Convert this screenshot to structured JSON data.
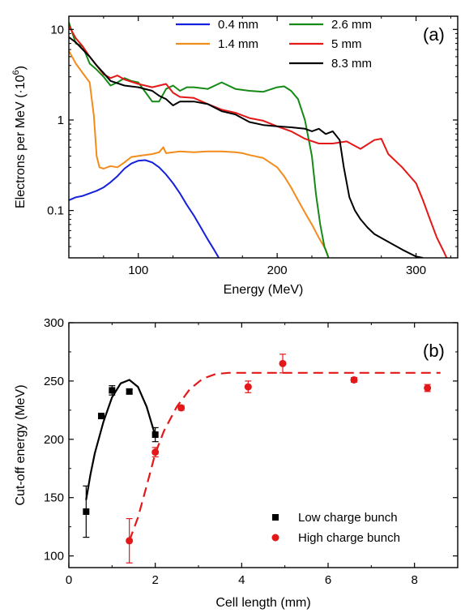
{
  "chart_data": [
    {
      "panel": "(a)",
      "type": "line",
      "xlabel": "Energy (MeV)",
      "ylabel": "Electrons per MeV (·10⁶)",
      "ylabel_main": "Electrons per MeV (",
      "ylabel_sup_base": "·10",
      "ylabel_sup_exp": "6",
      "ylabel_close": ")",
      "xlim": [
        50,
        330
      ],
      "ylim": [
        0.03,
        14
      ],
      "yscale": "log",
      "xticks": [
        100,
        200,
        300
      ],
      "yticks": [
        {
          "value": 0.1,
          "label": "0.1"
        },
        {
          "value": 1,
          "label": "1"
        },
        {
          "value": 10,
          "label": "10"
        }
      ],
      "grid": false,
      "legend_position": "top",
      "series": [
        {
          "name": "0.4 mm",
          "color": "#1520dd",
          "x": [
            50,
            55,
            60,
            65,
            70,
            75,
            80,
            85,
            90,
            95,
            100,
            105,
            110,
            115,
            120,
            125,
            130,
            135,
            140,
            145,
            150,
            155,
            158
          ],
          "y": [
            0.13,
            0.14,
            0.145,
            0.155,
            0.165,
            0.18,
            0.205,
            0.24,
            0.29,
            0.33,
            0.355,
            0.36,
            0.34,
            0.3,
            0.25,
            0.2,
            0.155,
            0.115,
            0.088,
            0.065,
            0.048,
            0.036,
            0.03
          ]
        },
        {
          "name": "1.4 mm",
          "color": "#f28c1c",
          "x": [
            50,
            55,
            60,
            65,
            68,
            70,
            72,
            75,
            80,
            85,
            90,
            95,
            100,
            110,
            115,
            118,
            120,
            130,
            140,
            150,
            160,
            170,
            175,
            180,
            190,
            200,
            205,
            210,
            215,
            220,
            225,
            230,
            235,
            237
          ],
          "y": [
            5.8,
            4.2,
            3.3,
            2.6,
            1.1,
            0.4,
            0.3,
            0.29,
            0.31,
            0.3,
            0.34,
            0.39,
            0.4,
            0.42,
            0.44,
            0.5,
            0.43,
            0.45,
            0.44,
            0.45,
            0.45,
            0.44,
            0.43,
            0.41,
            0.38,
            0.3,
            0.24,
            0.18,
            0.13,
            0.095,
            0.07,
            0.05,
            0.037,
            0.03
          ]
        },
        {
          "name": "2.6 mm",
          "color": "#168a16",
          "x": [
            50,
            55,
            60,
            65,
            70,
            75,
            80,
            85,
            90,
            95,
            100,
            110,
            115,
            120,
            125,
            130,
            135,
            140,
            150,
            160,
            170,
            180,
            190,
            200,
            205,
            210,
            215,
            220,
            225,
            228,
            231,
            234,
            237
          ],
          "y": [
            12,
            7,
            6.5,
            4.2,
            3.6,
            3,
            2.4,
            2.6,
            2.9,
            2.7,
            2.6,
            1.6,
            1.6,
            2.2,
            2.4,
            2.1,
            2.3,
            2.3,
            2.2,
            2.6,
            2.2,
            2.1,
            2.05,
            2.3,
            2.35,
            2.1,
            1.7,
            1.0,
            0.4,
            0.15,
            0.07,
            0.04,
            0.03
          ]
        },
        {
          "name": "5 mm",
          "color": "#e41818",
          "x": [
            50,
            55,
            60,
            65,
            70,
            75,
            80,
            85,
            90,
            100,
            110,
            120,
            125,
            130,
            140,
            150,
            160,
            170,
            180,
            190,
            200,
            210,
            220,
            230,
            240,
            250,
            260,
            270,
            275,
            280,
            290,
            300,
            305,
            310,
            315,
            320,
            322
          ],
          "y": [
            11,
            8,
            6.5,
            5,
            4,
            3.2,
            2.9,
            3.1,
            2.8,
            2.5,
            2.3,
            2.5,
            2.0,
            1.8,
            1.75,
            1.5,
            1.3,
            1.2,
            1.05,
            0.98,
            0.85,
            0.75,
            0.62,
            0.55,
            0.55,
            0.58,
            0.48,
            0.6,
            0.62,
            0.42,
            0.3,
            0.2,
            0.13,
            0.08,
            0.05,
            0.035,
            0.03
          ]
        },
        {
          "name": "8.3 mm",
          "color": "#000000",
          "x": [
            50,
            55,
            60,
            65,
            70,
            75,
            80,
            90,
            100,
            110,
            115,
            120,
            125,
            130,
            140,
            150,
            160,
            170,
            180,
            190,
            200,
            210,
            220,
            225,
            230,
            235,
            240,
            245,
            248,
            252,
            256,
            260,
            265,
            270,
            280,
            290,
            300,
            305
          ],
          "y": [
            8.2,
            7.2,
            6.0,
            5.0,
            4.0,
            3.3,
            2.7,
            2.4,
            2.3,
            2.1,
            1.85,
            1.7,
            1.45,
            1.6,
            1.6,
            1.5,
            1.25,
            1.15,
            0.95,
            0.88,
            0.85,
            0.83,
            0.8,
            0.75,
            0.8,
            0.7,
            0.75,
            0.6,
            0.3,
            0.14,
            0.1,
            0.08,
            0.065,
            0.055,
            0.045,
            0.037,
            0.031,
            0.03
          ]
        }
      ]
    },
    {
      "panel": "(b)",
      "type": "scatter",
      "xlabel": "Cell length  (mm)",
      "ylabel": "Cut-off energy (MeV)",
      "xlim": [
        0,
        9
      ],
      "ylim": [
        90,
        300
      ],
      "xticks": [
        0,
        2,
        4,
        6,
        8
      ],
      "yticks": [
        100,
        150,
        200,
        250,
        300
      ],
      "grid": false,
      "legend_position": "bottom-right",
      "series": [
        {
          "name": "Low charge bunch",
          "marker": "square",
          "color": "#000000",
          "x": [
            0.4,
            0.75,
            1.0,
            1.4,
            2.0
          ],
          "y": [
            138,
            220,
            242,
            241,
            204
          ],
          "error": [
            22,
            2,
            4,
            2,
            6
          ]
        },
        {
          "name": "High charge bunch",
          "marker": "circle",
          "color": "#e41818",
          "x": [
            1.4,
            2.0,
            2.6,
            4.15,
            4.95,
            6.6,
            8.3
          ],
          "y": [
            113,
            189,
            227,
            245,
            265,
            251,
            244
          ],
          "error": [
            19,
            4,
            2,
            5,
            8,
            2,
            3
          ]
        }
      ],
      "fits": [
        {
          "for": "Low charge bunch",
          "style": "solid",
          "color": "#000000",
          "x": [
            0.4,
            0.5,
            0.6,
            0.8,
            1.0,
            1.2,
            1.4,
            1.6,
            1.8,
            2.0
          ],
          "y": [
            148,
            170,
            188,
            215,
            236,
            248,
            251,
            245,
            228,
            203
          ]
        },
        {
          "for": "High charge bunch",
          "style": "dashed",
          "color": "#e41818",
          "x": [
            1.4,
            1.6,
            1.8,
            2.0,
            2.2,
            2.5,
            2.8,
            3.1,
            3.4,
            3.7,
            4.0,
            5.0,
            6.0,
            7.0,
            8.0,
            8.6
          ],
          "y": [
            113,
            133,
            160,
            188,
            207,
            228,
            243,
            252,
            256,
            257,
            257,
            257,
            257,
            257,
            257,
            257
          ]
        }
      ]
    }
  ]
}
